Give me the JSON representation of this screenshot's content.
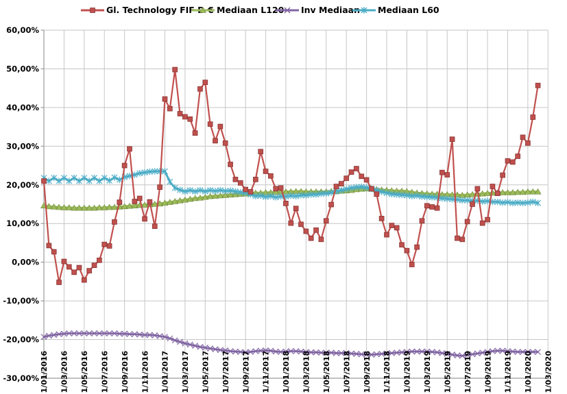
{
  "window": {
    "background": "#ffffff"
  },
  "colors": {
    "series_red": "#C0504D",
    "series_red_edge": "#8E3B39",
    "series_green": "#9BBB59",
    "series_green_edge": "#71893F",
    "series_purple": "#8064A2",
    "series_cyan": "#4BACC6",
    "gridline": "#C6C6C6",
    "axis": "#9B9B9B",
    "text": "#000000"
  },
  "chart_data": {
    "type": "line",
    "title": "",
    "grid": true,
    "legend_position": "top",
    "y_axis": {
      "min": -30,
      "max": 60,
      "step": 10,
      "format": "percent-comma"
    },
    "y_tick_labels": [
      "60,00%",
      "50,00%",
      "40,00%",
      "30,00%",
      "20,00%",
      "10,00%",
      "0,00%",
      "-10,00%",
      "-20,00%",
      "-30,00%"
    ],
    "x_tick_labels": [
      "1/01/2016",
      "1/03/2016",
      "1/05/2016",
      "1/07/2016",
      "1/09/2016",
      "1/11/2016",
      "1/01/2017",
      "1/03/2017",
      "1/05/2017",
      "1/07/2017",
      "1/09/2017",
      "1/11/2017",
      "1/01/2018",
      "1/03/2018",
      "1/05/2018",
      "1/07/2018",
      "1/09/2018",
      "1/11/2018",
      "1/01/2019",
      "1/03/2019",
      "1/05/2019",
      "1/07/2019",
      "1/09/2019",
      "1/11/2019",
      "1/01/2020",
      "1/03/2020"
    ],
    "points_per_x_interval": 4,
    "x_point_frequency": "semi-monthly",
    "draw_order": [
      2,
      1,
      3,
      0
    ],
    "legend": [
      {
        "name": "Gl. Technology FIF D €",
        "color": "#C0504D",
        "marker": "square"
      },
      {
        "name": "Mediaan L120",
        "color": "#9BBB59",
        "marker": "triangle"
      },
      {
        "name": "Inv Mediaan",
        "color": "#8064A2",
        "marker": "x"
      },
      {
        "name": "Mediaan L60",
        "color": "#4BACC6",
        "marker": "star"
      }
    ],
    "series": [
      {
        "name": "Gl. Technology FIF D €",
        "color": "#C0504D",
        "marker": "square",
        "line_width": 2.2,
        "values": [
          21.0,
          4.3,
          2.7,
          -5.2,
          0.2,
          -1.2,
          -2.6,
          -1.4,
          -4.6,
          -2.2,
          -0.8,
          0.5,
          4.6,
          4.2,
          10.4,
          15.5,
          25.0,
          29.3,
          15.7,
          16.5,
          11.2,
          15.6,
          9.3,
          19.4,
          42.2,
          39.7,
          49.8,
          38.4,
          37.6,
          37.0,
          33.4,
          44.8,
          46.5,
          35.7,
          31.4,
          35.1,
          30.8,
          25.3,
          21.4,
          20.5,
          18.8,
          18.2,
          21.4,
          28.6,
          23.5,
          22.3,
          19.0,
          19.2,
          15.2,
          10.1,
          13.9,
          9.8,
          8.0,
          6.2,
          8.3,
          5.9,
          10.7,
          14.9,
          19.6,
          20.3,
          21.7,
          23.3,
          24.2,
          22.2,
          21.3,
          19.0,
          17.6,
          11.3,
          7.1,
          9.5,
          8.9,
          4.5,
          3.0,
          -0.6,
          3.9,
          10.7,
          14.6,
          14.3,
          14.0,
          23.2,
          22.6,
          31.8,
          6.2,
          5.9,
          10.5,
          15.0,
          19.0,
          10.1,
          11.0,
          19.6,
          17.8,
          22.5,
          26.2,
          25.9,
          27.4,
          32.3,
          30.8,
          37.5,
          45.7
        ]
      },
      {
        "name": "Mediaan L120",
        "color": "#9BBB59",
        "marker": "triangle",
        "line_width": 3.8,
        "values": [
          14.6,
          14.4,
          14.3,
          14.2,
          14.1,
          14.1,
          14.0,
          14.0,
          14.0,
          14.0,
          14.0,
          14.1,
          14.1,
          14.2,
          14.2,
          14.3,
          14.4,
          14.5,
          14.6,
          14.7,
          14.8,
          14.9,
          15.0,
          15.1,
          15.3,
          15.5,
          15.7,
          15.9,
          16.1,
          16.3,
          16.5,
          16.6,
          16.8,
          17.0,
          17.1,
          17.2,
          17.3,
          17.4,
          17.5,
          17.6,
          17.7,
          17.8,
          17.9,
          17.9,
          18.0,
          18.0,
          18.1,
          18.1,
          18.2,
          18.2,
          18.3,
          18.3,
          18.2,
          18.2,
          18.2,
          18.2,
          18.2,
          18.3,
          18.3,
          18.4,
          18.5,
          18.6,
          18.8,
          18.9,
          19.0,
          18.9,
          18.8,
          18.7,
          18.6,
          18.5,
          18.4,
          18.4,
          18.3,
          18.1,
          17.9,
          17.8,
          17.7,
          17.6,
          17.6,
          17.5,
          17.5,
          17.4,
          17.4,
          17.3,
          17.4,
          17.5,
          17.6,
          17.7,
          17.8,
          17.9,
          17.9,
          18.0,
          18.0,
          18.0,
          18.1,
          18.1,
          18.2,
          18.2,
          18.2
        ]
      },
      {
        "name": "Inv Mediaan",
        "color": "#8064A2",
        "marker": "x",
        "line_width": 2.6,
        "values": [
          -19.3,
          -19.0,
          -18.8,
          -18.6,
          -18.5,
          -18.4,
          -18.4,
          -18.4,
          -18.4,
          -18.4,
          -18.4,
          -18.4,
          -18.4,
          -18.4,
          -18.4,
          -18.5,
          -18.5,
          -18.6,
          -18.6,
          -18.7,
          -18.8,
          -18.8,
          -18.9,
          -19.1,
          -19.3,
          -19.7,
          -20.2,
          -20.6,
          -21.0,
          -21.3,
          -21.6,
          -21.9,
          -22.1,
          -22.3,
          -22.5,
          -22.7,
          -22.8,
          -23.0,
          -23.1,
          -23.2,
          -23.3,
          -23.2,
          -23.0,
          -22.9,
          -22.8,
          -22.9,
          -23.1,
          -23.2,
          -23.1,
          -23.0,
          -23.0,
          -23.1,
          -23.2,
          -23.3,
          -23.3,
          -23.4,
          -23.4,
          -23.4,
          -23.5,
          -23.5,
          -23.5,
          -23.6,
          -23.7,
          -23.8,
          -23.9,
          -23.9,
          -23.8,
          -23.7,
          -23.6,
          -23.5,
          -23.4,
          -23.3,
          -23.2,
          -23.1,
          -23.1,
          -23.1,
          -23.1,
          -23.2,
          -23.3,
          -23.5,
          -23.7,
          -23.9,
          -24.1,
          -24.2,
          -24.0,
          -23.8,
          -23.6,
          -23.4,
          -23.2,
          -23.0,
          -22.9,
          -22.9,
          -23.0,
          -23.1,
          -23.2,
          -23.2,
          -23.2,
          -23.2,
          -23.2
        ]
      },
      {
        "name": "Mediaan L60",
        "color": "#4BACC6",
        "marker": "star",
        "line_width": 3.0,
        "values": [
          21.8,
          21.0,
          21.8,
          21.0,
          21.8,
          21.0,
          21.8,
          21.0,
          21.8,
          21.0,
          21.8,
          21.0,
          21.8,
          21.1,
          21.9,
          21.3,
          22.0,
          22.3,
          22.6,
          23.0,
          23.2,
          23.4,
          23.5,
          23.5,
          23.5,
          20.8,
          19.2,
          18.7,
          18.3,
          18.6,
          18.3,
          18.6,
          18.3,
          18.6,
          18.4,
          18.6,
          18.4,
          18.5,
          18.3,
          18.1,
          17.9,
          17.5,
          17.1,
          17.2,
          16.9,
          17.1,
          16.8,
          17.0,
          17.0,
          17.2,
          17.1,
          17.3,
          17.3,
          17.5,
          17.5,
          17.7,
          17.8,
          18.0,
          18.3,
          18.6,
          18.9,
          19.2,
          19.4,
          19.5,
          19.3,
          19.0,
          18.6,
          18.2,
          17.9,
          17.6,
          17.5,
          17.4,
          17.3,
          17.1,
          17.2,
          17.0,
          16.9,
          16.8,
          16.7,
          16.5,
          16.4,
          16.3,
          16.2,
          16.0,
          16.0,
          15.9,
          15.9,
          15.7,
          15.8,
          15.6,
          15.6,
          15.4,
          15.5,
          15.3,
          15.4,
          15.3,
          15.4,
          15.6,
          15.3
        ]
      }
    ]
  }
}
